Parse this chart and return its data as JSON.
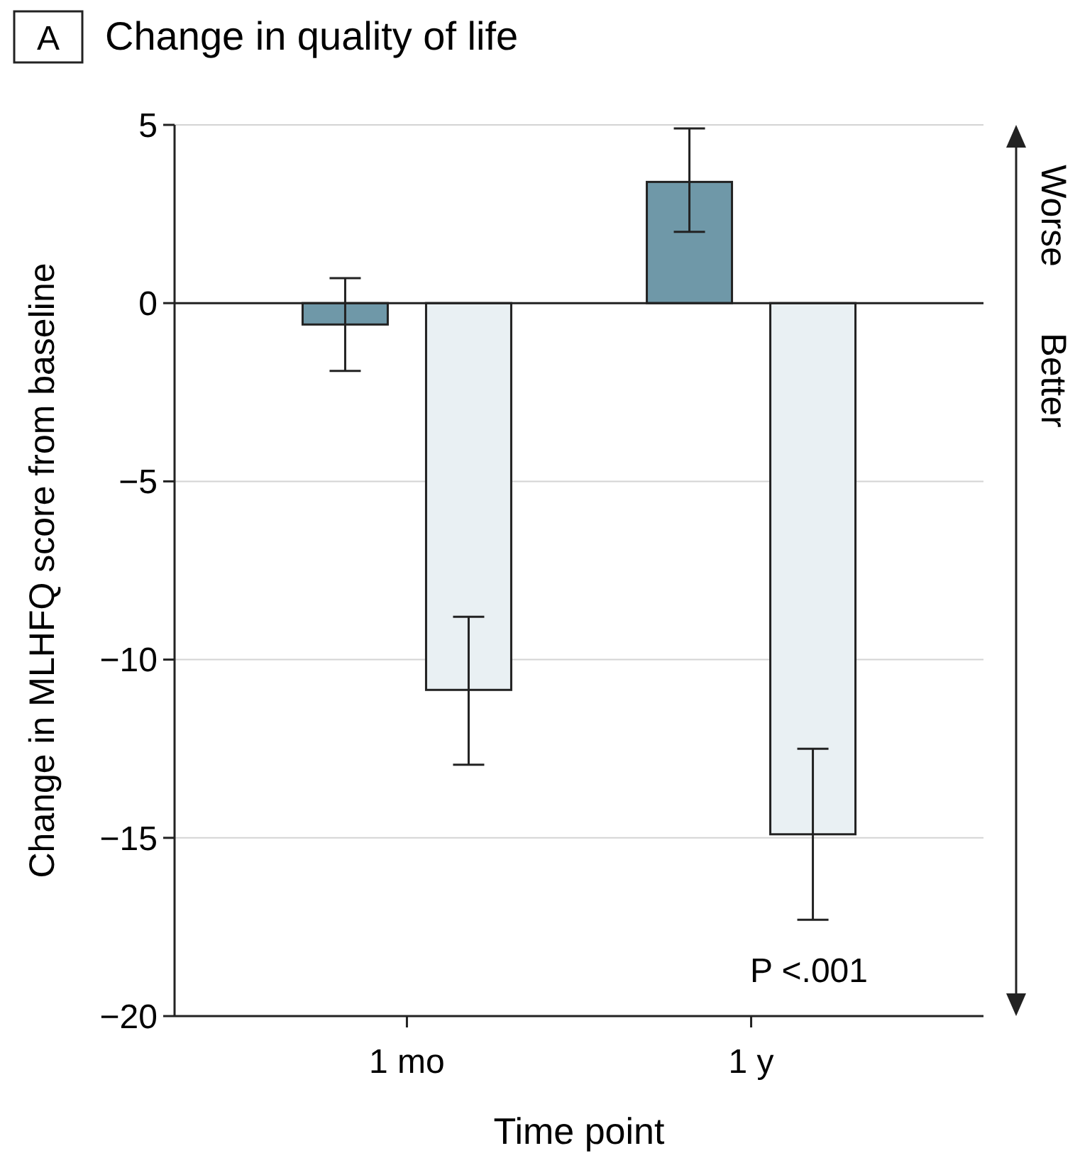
{
  "chart_data": {
    "type": "bar",
    "title": "Change in quality of life",
    "xlabel": "Time point",
    "ylabel": "Change in MLHFQ score from baseline",
    "categories": [
      "1 mo",
      "1 y"
    ],
    "series": [
      {
        "color": "#6f98a8",
        "values": [
          -0.6,
          3.4
        ],
        "errors": [
          [
            -1.9,
            0.7
          ],
          [
            2.0,
            4.9
          ]
        ]
      },
      {
        "color": "#e9f0f3",
        "values": [
          -10.85,
          -14.9
        ],
        "errors": [
          [
            -12.95,
            -8.8
          ],
          [
            -17.3,
            -12.5
          ]
        ]
      }
    ],
    "ylim": [
      -20,
      5
    ],
    "yticks": [
      5,
      0,
      -5,
      -10,
      -15,
      -20
    ],
    "grid": "y",
    "annotations": [
      "A",
      "P <.001",
      "Worse",
      "Better"
    ]
  }
}
